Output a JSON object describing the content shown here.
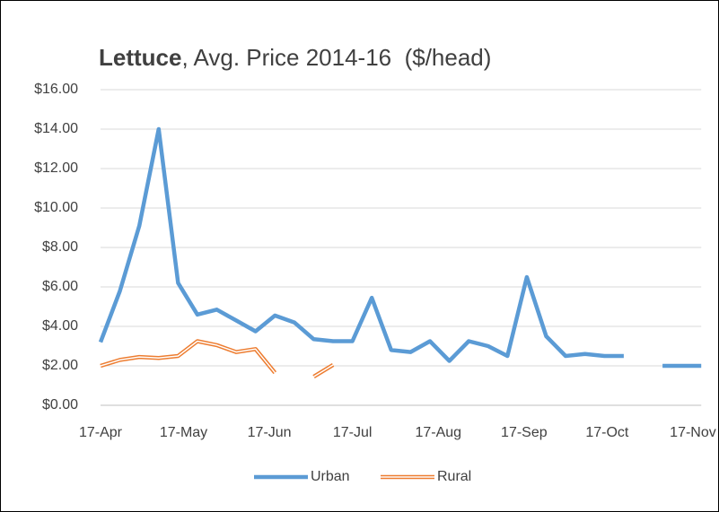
{
  "chart_data": {
    "type": "line",
    "title": [
      "Lettuce",
      ", Avg. Price 2014-16  ($/head)"
    ],
    "x": [
      "17-Apr",
      "24-Apr",
      "1-May",
      "8-May",
      "15-May",
      "22-May",
      "29-May",
      "5-Jun",
      "12-Jun",
      "19-Jun",
      "26-Jun",
      "3-Jul",
      "10-Jul",
      "17-Jul",
      "24-Jul",
      "31-Jul",
      "7-Aug",
      "14-Aug",
      "21-Aug",
      "28-Aug",
      "4-Sep",
      "11-Sep",
      "18-Sep",
      "25-Sep",
      "2-Oct",
      "9-Oct",
      "16-Oct",
      "23-Oct",
      "30-Oct",
      "6-Nov",
      "13-Nov",
      "20-Nov"
    ],
    "series": [
      {
        "name": "Urban",
        "color": "#5b9bd5",
        "style": "solid",
        "values": [
          3.2,
          5.8,
          9.1,
          14.0,
          6.2,
          4.6,
          4.85,
          4.3,
          3.75,
          4.55,
          4.2,
          3.35,
          3.25,
          3.25,
          5.45,
          2.8,
          2.7,
          3.25,
          2.25,
          3.25,
          3.0,
          2.5,
          6.5,
          3.5,
          2.5,
          2.6,
          2.5,
          2.5,
          null,
          2.0,
          2.0,
          2.0
        ]
      },
      {
        "name": "Rural",
        "color": "#ed7d31",
        "style": "double",
        "values": [
          2.0,
          2.3,
          2.45,
          2.4,
          2.5,
          3.25,
          3.05,
          2.7,
          2.85,
          1.65,
          null,
          1.45,
          2.05,
          null,
          null,
          null,
          null,
          null,
          null,
          null,
          null,
          null,
          null,
          null,
          null,
          null,
          null,
          null,
          null,
          null,
          null,
          null
        ]
      }
    ],
    "xlim": [
      "17-Apr",
      "20-Nov"
    ],
    "xticks": [
      "17-Apr",
      "17-May",
      "17-Jun",
      "17-Jul",
      "17-Aug",
      "17-Sep",
      "17-Oct",
      "17-Nov"
    ],
    "ylim": [
      0,
      16
    ],
    "yticks": [
      {
        "value": 0,
        "label": "$0.00"
      },
      {
        "value": 2,
        "label": "$2.00"
      },
      {
        "value": 4,
        "label": "$4.00"
      },
      {
        "value": 6,
        "label": "$6.00"
      },
      {
        "value": 8,
        "label": "$8.00"
      },
      {
        "value": 10,
        "label": "$10.00"
      },
      {
        "value": 12,
        "label": "$12.00"
      },
      {
        "value": 14,
        "label": "$14.00"
      },
      {
        "value": 16,
        "label": "$16.00"
      }
    ],
    "grid": true,
    "legend": "bottom"
  }
}
